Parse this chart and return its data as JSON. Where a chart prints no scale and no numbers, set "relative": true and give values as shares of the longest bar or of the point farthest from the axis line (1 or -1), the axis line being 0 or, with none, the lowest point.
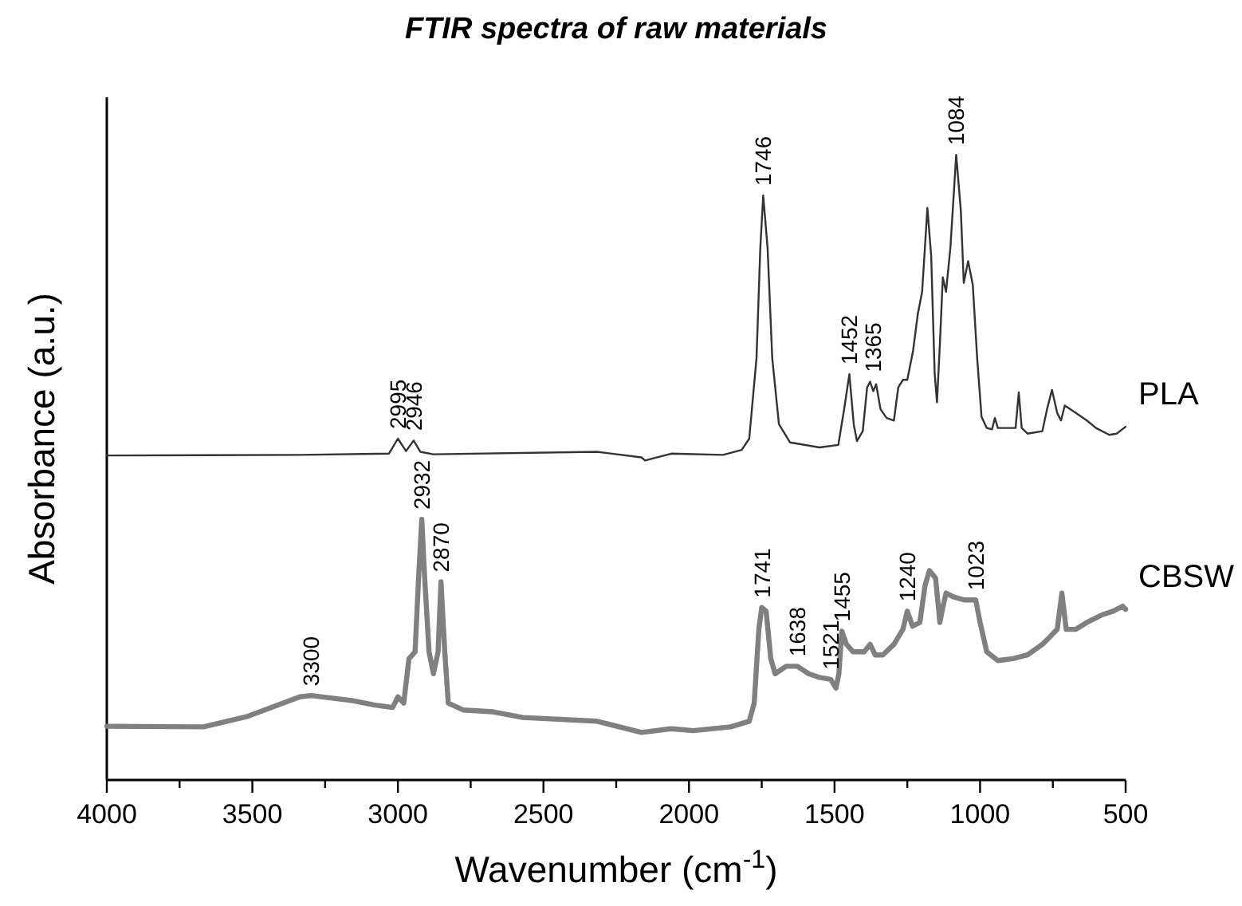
{
  "chart_data": {
    "type": "line",
    "title": "FTIR spectra of raw materials",
    "xlabel": "Wavenumber (cm$^{-1}$)",
    "ylabel": "Absorbance (a.u.)",
    "relative": true,
    "xlim": [
      4000,
      500
    ],
    "xticks": [
      4000,
      {
        "value": 3750,
        "label": null
      },
      3500,
      {
        "value": 3250,
        "label": null
      },
      3000,
      {
        "value": 2750,
        "label": null
      },
      2500,
      {
        "value": 2250,
        "label": null
      },
      2000,
      {
        "value": 1750,
        "label": null
      },
      1500,
      {
        "value": 1250,
        "label": null
      },
      1000,
      {
        "value": 750,
        "label": null
      },
      500
    ],
    "grid": false,
    "marker": "none",
    "line_style": "solid",
    "series": [
      {
        "name": "PLA",
        "color": "#333333",
        "x": [
          4000,
          3337,
          3031,
          3000,
          2972,
          2946,
          2923,
          2878,
          2316,
          2163,
          2151,
          2061,
          1883,
          1819,
          1793,
          1768,
          1755,
          1745,
          1730,
          1714,
          1691,
          1653,
          1551,
          1487,
          1467,
          1449,
          1434,
          1423,
          1403,
          1388,
          1378,
          1367,
          1357,
          1342,
          1321,
          1296,
          1281,
          1265,
          1250,
          1230,
          1214,
          1199,
          1181,
          1168,
          1156,
          1148,
          1138,
          1128,
          1117,
          1102,
          1082,
          1066,
          1056,
          1041,
          1025,
          1010,
          995,
          977,
          959,
          949,
          939,
          878,
          867,
          857,
          837,
          786,
          770,
          753,
          735,
          722,
          709,
          671,
          633,
          602,
          556,
          531,
          500
        ],
        "values": [
          0.519,
          0.52,
          0.522,
          0.546,
          0.526,
          0.543,
          0.525,
          0.521,
          0.525,
          0.516,
          0.511,
          0.522,
          0.52,
          0.528,
          0.546,
          0.675,
          0.851,
          0.935,
          0.851,
          0.675,
          0.569,
          0.54,
          0.532,
          0.536,
          0.593,
          0.649,
          0.569,
          0.542,
          0.558,
          0.628,
          0.637,
          0.622,
          0.633,
          0.593,
          0.579,
          0.575,
          0.628,
          0.64,
          0.64,
          0.687,
          0.745,
          0.781,
          0.915,
          0.839,
          0.651,
          0.604,
          0.698,
          0.804,
          0.781,
          0.851,
          1,
          0.91,
          0.795,
          0.83,
          0.792,
          0.675,
          0.581,
          0.563,
          0.561,
          0.579,
          0.563,
          0.563,
          0.62,
          0.563,
          0.554,
          0.558,
          0.593,
          0.624,
          0.587,
          0.575,
          0.599,
          0.587,
          0.575,
          0.563,
          0.552,
          0.554,
          0.565
        ]
      },
      {
        "name": "CBSW",
        "color": "#808080",
        "x": [
          4000,
          3668,
          3515,
          3337,
          3298,
          3158,
          3082,
          3018,
          3000,
          2980,
          2962,
          2941,
          2929,
          2918,
          2908,
          2893,
          2878,
          2862,
          2852,
          2839,
          2827,
          2776,
          2673,
          2571,
          2316,
          2163,
          2061,
          1985,
          1857,
          1793,
          1776,
          1760,
          1750,
          1735,
          1719,
          1704,
          1666,
          1628,
          1589,
          1551,
          1513,
          1495,
          1485,
          1475,
          1459,
          1436,
          1398,
          1378,
          1360,
          1334,
          1296,
          1265,
          1250,
          1232,
          1207,
          1189,
          1174,
          1153,
          1138,
          1128,
          1117,
          1092,
          1054,
          1015,
          1000,
          977,
          939,
          888,
          837,
          786,
          760,
          735,
          719,
          704,
          671,
          633,
          582,
          543,
          510,
          500
        ],
        "values": [
          0.086,
          0.085,
          0.102,
          0.133,
          0.135,
          0.127,
          0.12,
          0.116,
          0.133,
          0.123,
          0.194,
          0.205,
          0.323,
          0.417,
          0.323,
          0.205,
          0.17,
          0.205,
          0.317,
          0.205,
          0.123,
          0.112,
          0.109,
          0.1,
          0.094,
          0.076,
          0.082,
          0.079,
          0.085,
          0.094,
          0.123,
          0.241,
          0.276,
          0.27,
          0.194,
          0.17,
          0.182,
          0.182,
          0.17,
          0.164,
          0.161,
          0.147,
          0.17,
          0.238,
          0.217,
          0.205,
          0.205,
          0.217,
          0.2,
          0.2,
          0.217,
          0.241,
          0.27,
          0.246,
          0.252,
          0.311,
          0.335,
          0.323,
          0.252,
          0.276,
          0.299,
          0.293,
          0.288,
          0.288,
          0.252,
          0.205,
          0.191,
          0.194,
          0.2,
          0.217,
          0.229,
          0.241,
          0.299,
          0.241,
          0.241,
          0.252,
          0.264,
          0.27,
          0.278,
          0.273
        ]
      }
    ],
    "annotations": [
      {
        "text": "2995",
        "x": 3000,
        "y": 0.546
      },
      {
        "text": "2946",
        "x": 2946,
        "y": 0.543
      },
      {
        "text": "1746",
        "x": 1745,
        "y": 0.935
      },
      {
        "text": "1452",
        "x": 1449,
        "y": 0.649
      },
      {
        "text": "1365",
        "x": 1367,
        "y": 0.637
      },
      {
        "text": "1084",
        "x": 1082,
        "y": 1
      },
      {
        "text": "3300",
        "x": 3298,
        "y": 0.135
      },
      {
        "text": "2932",
        "x": 2918,
        "y": 0.417
      },
      {
        "text": "2870",
        "x": 2852,
        "y": 0.317
      },
      {
        "text": "1741",
        "x": 1750,
        "y": 0.276
      },
      {
        "text": "1638",
        "x": 1628,
        "y": 0.182
      },
      {
        "text": "1521",
        "x": 1513,
        "y": 0.161
      },
      {
        "text": "1455",
        "x": 1475,
        "y": 0.238
      },
      {
        "text": "1240",
        "x": 1250,
        "y": 0.27
      },
      {
        "text": "1023",
        "x": 1015,
        "y": 0.288
      }
    ]
  }
}
